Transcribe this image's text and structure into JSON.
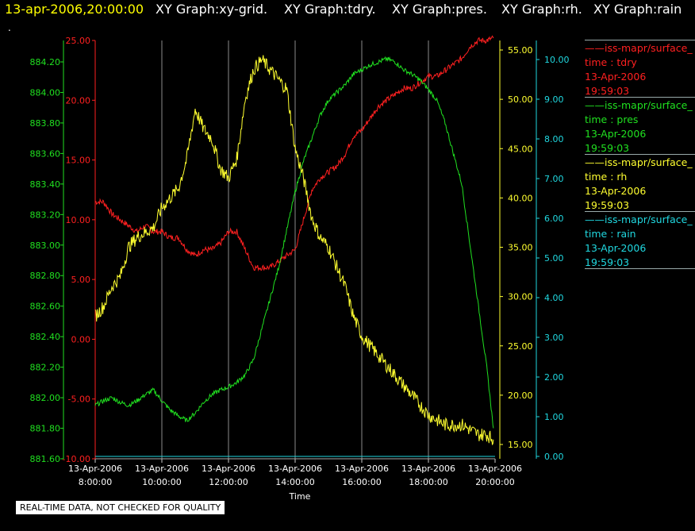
{
  "header": {
    "timestamp": "13-apr-2006,20:00:00",
    "titles": [
      "XY Graph:xy-grid.",
      "XY Graph:tdry.",
      "XY Graph:pres.",
      "XY Graph:rh.",
      "XY Graph:rain"
    ],
    "dot": ".",
    "timestamp_color": "#ffff00"
  },
  "legend": [
    {
      "source": "iss-mapr/surface_",
      "var": "time : tdry",
      "date": "13-Apr-2006",
      "time": "19:59:03",
      "color": "#ff2020"
    },
    {
      "source": "iss-mapr/surface_",
      "var": "time : pres",
      "date": "13-Apr-2006",
      "time": "19:59:03",
      "color": "#20e020"
    },
    {
      "source": "iss-mapr/surface_",
      "var": "time : rh",
      "date": "13-Apr-2006",
      "time": "19:59:03",
      "color": "#ffff30"
    },
    {
      "source": "iss-mapr/surface_",
      "var": "time : rain",
      "date": "13-Apr-2006",
      "time": "19:59:03",
      "color": "#20d8e0"
    }
  ],
  "notice": "REAL-TIME DATA, NOT CHECKED FOR QUALITY",
  "chart_data": {
    "type": "line",
    "xlabel": "Time",
    "x_ticks": [
      {
        "date": "13-Apr-2006",
        "time": "8:00:00",
        "hour": 8
      },
      {
        "date": "13-Apr-2006",
        "time": "10:00:00",
        "hour": 10
      },
      {
        "date": "13-Apr-2006",
        "time": "12:00:00",
        "hour": 12
      },
      {
        "date": "13-Apr-2006",
        "time": "14:00:00",
        "hour": 14
      },
      {
        "date": "13-Apr-2006",
        "time": "16:00:00",
        "hour": 16
      },
      {
        "date": "13-Apr-2006",
        "time": "18:00:00",
        "hour": 18
      },
      {
        "date": "13-Apr-2006",
        "time": "20:00:00",
        "hour": 20
      }
    ],
    "xlim_hours": [
      8,
      20
    ],
    "grid": "vertical",
    "axes": {
      "tdry": {
        "color": "#ff2020",
        "ylim": [
          -10,
          25
        ],
        "ticks": [
          "-10.00",
          "-5.00",
          "0.00",
          "5.00",
          "10.00",
          "15.00",
          "20.00",
          "25.00"
        ]
      },
      "pres": {
        "color": "#20e020",
        "ylim": [
          881.6,
          884.3
        ],
        "ticks": [
          "881.60",
          "881.80",
          "882.00",
          "882.20",
          "882.40",
          "882.60",
          "882.80",
          "883.00",
          "883.20",
          "883.40",
          "883.60",
          "883.80",
          "884.00",
          "884.20"
        ]
      },
      "rh": {
        "color": "#ffff30",
        "ylim": [
          14,
          56
        ],
        "ticks": [
          "15.00",
          "20.00",
          "25.00",
          "30.00",
          "35.00",
          "40.00",
          "45.00",
          "50.00",
          "55.00"
        ]
      },
      "rain": {
        "color": "#20d8e0",
        "ylim": [
          0,
          10.5
        ],
        "ticks": [
          "0.00",
          "1.00",
          "2.00",
          "3.00",
          "4.00",
          "5.00",
          "6.00",
          "7.00",
          "8.00",
          "9.00",
          "10.00"
        ]
      }
    },
    "series": [
      {
        "name": "tdry",
        "x": [
          8,
          8.25,
          8.5,
          8.75,
          9,
          9.25,
          9.5,
          9.75,
          10,
          10.25,
          10.5,
          10.75,
          11,
          11.25,
          11.5,
          11.75,
          12,
          12.25,
          12.5,
          12.75,
          13,
          13.25,
          13.5,
          13.75,
          14,
          14.25,
          14.5,
          14.75,
          15,
          15.25,
          15.5,
          15.75,
          16,
          16.25,
          16.5,
          16.75,
          17,
          17.25,
          17.5,
          17.75,
          18,
          18.25,
          18.5,
          18.75,
          19,
          19.25,
          19.5,
          19.75,
          19.95
        ],
        "values": [
          11.5,
          11.5,
          10.5,
          10,
          9.5,
          9,
          9.5,
          9,
          9,
          8.5,
          8.5,
          7.5,
          7,
          7.5,
          7.5,
          8,
          9,
          9,
          7.5,
          6,
          6,
          6,
          6.5,
          7,
          7.5,
          10,
          12.5,
          13.5,
          14,
          14.5,
          15.5,
          17,
          17.5,
          18.5,
          19.5,
          20,
          20.5,
          21,
          21,
          21.5,
          22,
          22,
          22.5,
          23,
          23.5,
          24.5,
          25,
          25,
          25.2
        ]
      },
      {
        "name": "pres",
        "x": [
          8,
          8.25,
          8.5,
          8.75,
          9,
          9.25,
          9.5,
          9.75,
          10,
          10.25,
          10.5,
          10.75,
          11,
          11.25,
          11.5,
          11.75,
          12,
          12.25,
          12.5,
          12.75,
          13,
          13.25,
          13.5,
          13.75,
          14,
          14.25,
          14.5,
          14.75,
          15,
          15.25,
          15.5,
          15.75,
          16,
          16.25,
          16.5,
          16.75,
          17,
          17.25,
          17.5,
          17.75,
          18,
          18.25,
          18.5,
          18.75,
          19,
          19.25,
          19.5,
          19.75,
          19.95
        ],
        "values": [
          881.95,
          881.98,
          882.0,
          881.97,
          881.95,
          881.98,
          882.02,
          882.05,
          881.98,
          881.92,
          881.88,
          881.85,
          881.9,
          881.97,
          882.02,
          882.05,
          882.07,
          882.1,
          882.15,
          882.25,
          882.45,
          882.65,
          882.85,
          883.1,
          883.35,
          883.55,
          883.7,
          883.85,
          883.95,
          884.0,
          884.05,
          884.12,
          884.15,
          884.18,
          884.2,
          884.22,
          884.2,
          884.15,
          884.12,
          884.08,
          884.02,
          883.95,
          883.8,
          883.6,
          883.4,
          883.0,
          882.6,
          882.2,
          881.8
        ]
      },
      {
        "name": "rh",
        "x": [
          8,
          8.25,
          8.5,
          8.75,
          9,
          9.25,
          9.5,
          9.75,
          10,
          10.25,
          10.5,
          10.75,
          11,
          11.25,
          11.5,
          11.75,
          12,
          12.25,
          12.5,
          12.75,
          13,
          13.25,
          13.5,
          13.75,
          14,
          14.25,
          14.5,
          14.75,
          15,
          15.25,
          15.5,
          15.75,
          16,
          16.25,
          16.5,
          16.75,
          17,
          17.25,
          17.5,
          17.75,
          18,
          18.25,
          18.5,
          18.75,
          19,
          19.25,
          19.5,
          19.75,
          19.95
        ],
        "values": [
          28,
          29,
          31,
          32,
          35,
          36,
          36.5,
          37,
          39,
          40,
          41,
          44,
          49,
          47,
          46,
          43,
          42,
          44,
          50,
          53,
          54,
          53,
          52,
          51,
          45,
          42,
          38,
          36,
          35,
          33,
          31,
          28,
          26,
          25,
          24,
          23,
          22,
          21,
          20,
          19,
          18,
          17.5,
          17,
          17,
          17,
          16.5,
          16,
          16,
          15.5
        ]
      },
      {
        "name": "rain",
        "x": [
          8,
          20
        ],
        "values": [
          0,
          0
        ]
      }
    ]
  }
}
